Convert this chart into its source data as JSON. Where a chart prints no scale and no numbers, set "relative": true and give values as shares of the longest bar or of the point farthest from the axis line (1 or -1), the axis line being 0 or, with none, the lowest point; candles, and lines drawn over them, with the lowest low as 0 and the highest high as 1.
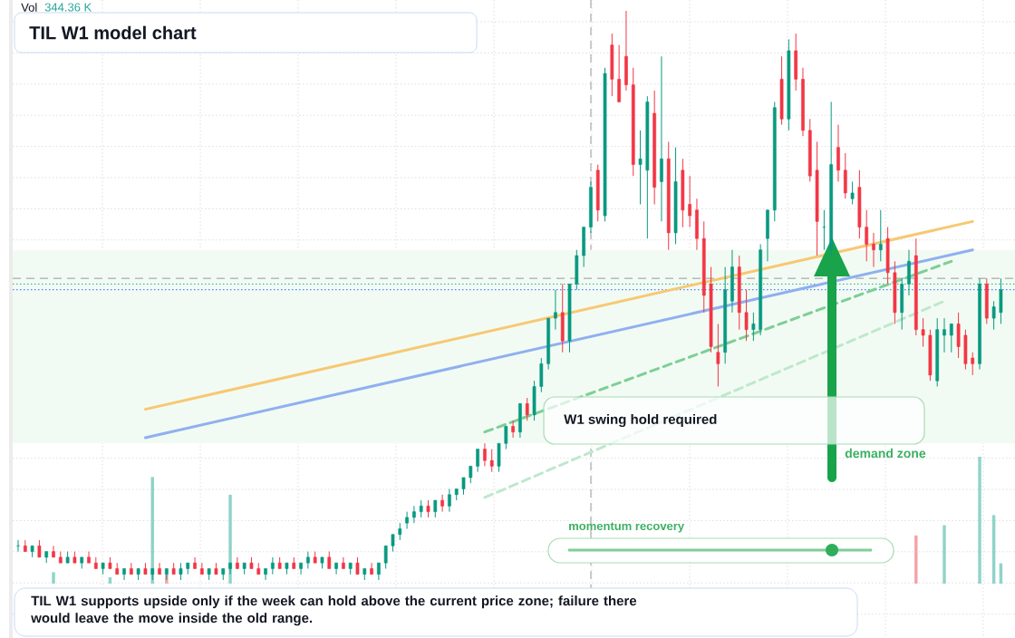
{
  "chart_data": [
    {
      "type": "candlestick",
      "title": "TIL W1 model chart",
      "relative": true,
      "grid": true,
      "categories": [
        null,
        null,
        null,
        null,
        null,
        null,
        null,
        null,
        null,
        null,
        null,
        null,
        null,
        null,
        null,
        null,
        null,
        null,
        null,
        null,
        null,
        null,
        null,
        null,
        null,
        null,
        null,
        null,
        null,
        null,
        null,
        null,
        null,
        null,
        null,
        null,
        null,
        null,
        null,
        null,
        null,
        null,
        null,
        null,
        null,
        null,
        null,
        null,
        null,
        null,
        null,
        null,
        null,
        null,
        null,
        null,
        null,
        null,
        null,
        null,
        null,
        null,
        null,
        null,
        null,
        null,
        null,
        null,
        null,
        null,
        null,
        null,
        null,
        null,
        null,
        null,
        null,
        null,
        null,
        null,
        null,
        null,
        null,
        null,
        null,
        null,
        null,
        null,
        null,
        null,
        null,
        null,
        null,
        null,
        null,
        null,
        null,
        null,
        null,
        null,
        null,
        null,
        null,
        null,
        null,
        null,
        null,
        null,
        null,
        null,
        null,
        null,
        null,
        null,
        null,
        null,
        null,
        null,
        null,
        null,
        null,
        null,
        null,
        null,
        null,
        null,
        null,
        null,
        null,
        null,
        null,
        null,
        null,
        null,
        null,
        null,
        null,
        null,
        null,
        null
      ],
      "ohlc": [
        [
          0.06,
          0.07,
          0.05,
          0.06
        ],
        [
          0.06,
          0.07,
          0.05,
          0.05
        ],
        [
          0.05,
          0.06,
          0.04,
          0.06
        ],
        [
          0.06,
          0.07,
          0.04,
          0.04
        ],
        [
          0.04,
          0.05,
          0.03,
          0.05
        ],
        [
          0.05,
          0.06,
          0.04,
          0.04
        ],
        [
          0.04,
          0.05,
          0.03,
          0.03
        ],
        [
          0.03,
          0.05,
          0.03,
          0.04
        ],
        [
          0.04,
          0.05,
          0.03,
          0.03
        ],
        [
          0.03,
          0.04,
          0.02,
          0.04
        ],
        [
          0.04,
          0.05,
          0.03,
          0.03
        ],
        [
          0.03,
          0.04,
          0.02,
          0.02
        ],
        [
          0.02,
          0.03,
          0.01,
          0.03
        ],
        [
          0.03,
          0.04,
          0.02,
          0.02
        ],
        [
          0.02,
          0.03,
          0.01,
          0.01
        ],
        [
          0.01,
          0.02,
          0,
          0.02
        ],
        [
          0.02,
          0.03,
          0.01,
          0.01
        ],
        [
          0.01,
          0.02,
          0,
          0.02
        ],
        [
          0.02,
          0.03,
          0.01,
          0.01
        ],
        [
          0.01,
          0.02,
          0,
          0.02
        ],
        [
          0.02,
          0.03,
          0.01,
          0.01
        ],
        [
          0.01,
          0.02,
          0,
          0.02
        ],
        [
          0.02,
          0.03,
          0.01,
          0.01
        ],
        [
          0.01,
          0.03,
          0,
          0.02
        ],
        [
          0.02,
          0.03,
          0.01,
          0.03
        ],
        [
          0.03,
          0.04,
          0.02,
          0.02
        ],
        [
          0.02,
          0.03,
          0.01,
          0.01
        ],
        [
          0.01,
          0.02,
          0,
          0.02
        ],
        [
          0.02,
          0.03,
          0.01,
          0.01
        ],
        [
          0.01,
          0.02,
          0,
          0.02
        ],
        [
          0.02,
          0.03,
          0.01,
          0.03
        ],
        [
          0.03,
          0.04,
          0.02,
          0.02
        ],
        [
          0.02,
          0.03,
          0.01,
          0.03
        ],
        [
          0.03,
          0.04,
          0.02,
          0.02
        ],
        [
          0.02,
          0.03,
          0.01,
          0.01
        ],
        [
          0.01,
          0.02,
          0,
          0.02
        ],
        [
          0.02,
          0.04,
          0.01,
          0.03
        ],
        [
          0.03,
          0.04,
          0.02,
          0.02
        ],
        [
          0.02,
          0.03,
          0.01,
          0.03
        ],
        [
          0.03,
          0.04,
          0.02,
          0.02
        ],
        [
          0.02,
          0.03,
          0.01,
          0.03
        ],
        [
          0.03,
          0.05,
          0.02,
          0.04
        ],
        [
          0.04,
          0.05,
          0.03,
          0.03
        ],
        [
          0.03,
          0.04,
          0.02,
          0.04
        ],
        [
          0.04,
          0.05,
          0.02,
          0.02
        ],
        [
          0.02,
          0.03,
          0.01,
          0.03
        ],
        [
          0.03,
          0.04,
          0.02,
          0.02
        ],
        [
          0.02,
          0.03,
          0.01,
          0.03
        ],
        [
          0.03,
          0.04,
          0.01,
          0.01
        ],
        [
          0.01,
          0.02,
          0,
          0.02
        ],
        [
          0.02,
          0.03,
          0.01,
          0.01
        ],
        [
          0.01,
          0.03,
          0,
          0.03
        ],
        [
          0.03,
          0.06,
          0.02,
          0.06
        ],
        [
          0.06,
          0.08,
          0.05,
          0.08
        ],
        [
          0.08,
          0.1,
          0.07,
          0.09
        ],
        [
          0.1,
          0.12,
          0.09,
          0.11
        ],
        [
          0.11,
          0.13,
          0.1,
          0.12
        ],
        [
          0.12,
          0.14,
          0.11,
          0.13
        ],
        [
          0.13,
          0.14,
          0.11,
          0.12
        ],
        [
          0.12,
          0.14,
          0.11,
          0.14
        ],
        [
          0.14,
          0.15,
          0.12,
          0.13
        ],
        [
          0.13,
          0.16,
          0.12,
          0.15
        ],
        [
          0.15,
          0.16,
          0.14,
          0.16
        ],
        [
          0.16,
          0.18,
          0.15,
          0.18
        ],
        [
          0.18,
          0.2,
          0.17,
          0.2
        ],
        [
          0.2,
          0.23,
          0.19,
          0.23
        ],
        [
          0.23,
          0.24,
          0.2,
          0.21
        ],
        [
          0.21,
          0.23,
          0.19,
          0.2
        ],
        [
          0.2,
          0.24,
          0.19,
          0.24
        ],
        [
          0.24,
          0.27,
          0.23,
          0.27
        ],
        [
          0.27,
          0.28,
          0.25,
          0.26
        ],
        [
          0.26,
          0.31,
          0.25,
          0.31
        ],
        [
          0.31,
          0.32,
          0.28,
          0.29
        ],
        [
          0.29,
          0.35,
          0.28,
          0.34
        ],
        [
          0.34,
          0.39,
          0.33,
          0.38
        ],
        [
          0.38,
          0.46,
          0.37,
          0.46
        ],
        [
          0.46,
          0.51,
          0.44,
          0.47
        ],
        [
          0.47,
          0.52,
          0.4,
          0.42
        ],
        [
          0.42,
          0.52,
          0.4,
          0.52
        ],
        [
          0.52,
          0.58,
          0.51,
          0.57
        ],
        [
          0.57,
          0.62,
          0.55,
          0.62
        ],
        [
          0.62,
          0.7,
          0.61,
          0.69
        ],
        [
          0.72,
          0.73,
          0.63,
          0.65
        ],
        [
          0.64,
          0.9,
          0.63,
          0.89
        ],
        [
          0.94,
          0.96,
          0.85,
          0.88
        ],
        [
          0.88,
          0.94,
          0.84,
          0.84
        ],
        [
          0.92,
          1,
          0.86,
          0.87
        ],
        [
          0.87,
          0.9,
          0.71,
          0.73
        ],
        [
          0.73,
          0.79,
          0.66,
          0.74
        ],
        [
          0.72,
          0.85,
          0.6,
          0.84
        ],
        [
          0.82,
          0.86,
          0.66,
          0.69
        ],
        [
          0.7,
          0.92,
          0.63,
          0.74
        ],
        [
          0.74,
          0.77,
          0.58,
          0.61
        ],
        [
          0.61,
          0.76,
          0.59,
          0.7
        ],
        [
          0.72,
          0.74,
          0.62,
          0.65
        ],
        [
          0.66,
          0.71,
          0.62,
          0.64
        ],
        [
          0.65,
          0.67,
          0.58,
          0.6
        ],
        [
          0.6,
          0.63,
          0.47,
          0.5
        ],
        [
          0.52,
          0.55,
          0.4,
          0.41
        ],
        [
          0.4,
          0.45,
          0.34,
          0.38
        ],
        [
          0.4,
          0.55,
          0.38,
          0.51
        ],
        [
          0.49,
          0.58,
          0.47,
          0.55
        ],
        [
          0.55,
          0.57,
          0.44,
          0.47
        ],
        [
          0.47,
          0.51,
          0.42,
          0.44
        ],
        [
          0.44,
          0.47,
          0.42,
          0.45
        ],
        [
          0.44,
          0.59,
          0.43,
          0.58
        ],
        [
          0.6,
          0.65,
          0.56,
          0.65
        ],
        [
          0.65,
          0.84,
          0.63,
          0.83
        ],
        [
          0.88,
          0.92,
          0.8,
          0.81
        ],
        [
          0.81,
          0.95,
          0.79,
          0.93
        ],
        [
          0.93,
          0.96,
          0.86,
          0.88
        ],
        [
          0.88,
          0.9,
          0.78,
          0.79
        ],
        [
          0.79,
          0.81,
          0.7,
          0.71
        ],
        [
          0.72,
          0.77,
          0.57,
          0.63
        ],
        [
          0.62,
          0.65,
          0.58,
          0.62
        ],
        [
          0.58,
          0.84,
          0.57,
          0.73
        ],
        [
          0.76,
          0.8,
          0.7,
          0.72
        ],
        [
          0.72,
          0.75,
          0.67,
          0.68
        ],
        [
          0.67,
          0.7,
          0.66,
          0.68
        ],
        [
          0.69,
          0.72,
          0.6,
          0.62
        ],
        [
          0.62,
          0.65,
          0.56,
          0.59
        ],
        [
          0.59,
          0.61,
          0.55,
          0.58
        ],
        [
          0.58,
          0.65,
          0.56,
          0.59
        ],
        [
          0.6,
          0.62,
          0.52,
          0.54
        ],
        [
          0.54,
          0.56,
          0.45,
          0.47
        ],
        [
          0.47,
          0.53,
          0.44,
          0.52
        ],
        [
          0.52,
          0.58,
          0.5,
          0.56
        ],
        [
          0.57,
          0.6,
          0.43,
          0.44
        ],
        [
          0.44,
          0.46,
          0.41,
          0.43
        ],
        [
          0.43,
          0.44,
          0.35,
          0.36
        ],
        [
          0.35,
          0.46,
          0.34,
          0.44
        ],
        [
          0.43,
          0.46,
          0.4,
          0.44
        ],
        [
          0.43,
          0.45,
          0.4,
          0.45
        ],
        [
          0.45,
          0.47,
          0.39,
          0.41
        ],
        [
          0.43,
          0.44,
          0.37,
          0.38
        ],
        [
          0.39,
          0.4,
          0.36,
          0.38
        ],
        [
          0.38,
          0.53,
          0.37,
          0.52
        ],
        [
          0.52,
          0.53,
          0.45,
          0.46
        ],
        [
          0.46,
          0.49,
          0.44,
          0.48
        ],
        [
          0.47,
          0.53,
          0.45,
          0.51
        ]
      ],
      "series": [
        {
          "type": "line",
          "color": "#f7c873",
          "values": [
            null,
            null,
            null,
            null,
            null,
            null,
            null,
            null,
            null,
            null,
            null,
            null,
            null,
            null,
            null,
            null,
            null,
            null,
            0.3,
            null,
            null,
            null,
            null,
            null,
            null,
            null,
            null,
            null,
            null,
            null,
            null,
            null,
            null,
            null,
            null,
            null,
            null,
            null,
            null,
            null,
            null,
            null,
            null,
            null,
            null,
            null,
            null,
            null,
            null,
            null,
            null,
            null,
            null,
            null,
            null,
            null,
            null,
            null,
            null,
            null,
            null,
            null,
            null,
            null,
            null,
            null,
            null,
            null,
            null,
            null,
            null,
            null,
            null,
            null,
            null,
            null,
            null,
            null,
            null,
            null,
            null,
            null,
            null,
            null,
            null,
            null,
            null,
            null,
            null,
            null,
            null,
            null,
            null,
            null,
            null,
            null,
            null,
            null,
            null,
            null,
            null,
            null,
            null,
            null,
            null,
            null,
            null,
            null,
            null,
            null,
            null,
            null,
            null,
            null,
            null,
            null,
            null,
            null,
            null,
            null,
            null,
            null,
            null,
            null,
            null,
            null,
            null,
            null,
            null,
            null,
            null,
            null,
            null,
            null,
            null,
            0.63,
            null,
            null,
            null,
            null
          ]
        },
        {
          "type": "line",
          "color": "#8fb0f0",
          "values": [
            null,
            null,
            null,
            null,
            null,
            null,
            null,
            null,
            null,
            null,
            null,
            null,
            null,
            null,
            null,
            null,
            null,
            null,
            0.25,
            null,
            null,
            null,
            null,
            null,
            null,
            null,
            null,
            null,
            null,
            null,
            null,
            null,
            null,
            null,
            null,
            null,
            null,
            null,
            null,
            null,
            null,
            null,
            null,
            null,
            null,
            null,
            null,
            null,
            null,
            null,
            null,
            null,
            null,
            null,
            null,
            null,
            null,
            null,
            null,
            null,
            null,
            null,
            null,
            null,
            null,
            null,
            null,
            null,
            null,
            null,
            null,
            null,
            null,
            null,
            null,
            null,
            null,
            null,
            null,
            null,
            null,
            null,
            null,
            null,
            null,
            null,
            null,
            null,
            null,
            null,
            null,
            null,
            null,
            null,
            null,
            null,
            null,
            null,
            null,
            null,
            null,
            null,
            null,
            null,
            null,
            null,
            null,
            null,
            null,
            null,
            null,
            null,
            null,
            null,
            null,
            null,
            null,
            null,
            null,
            null,
            null,
            null,
            null,
            null,
            null,
            null,
            null,
            null,
            null,
            null,
            null,
            null,
            null,
            null,
            null,
            0.58,
            null,
            null,
            null,
            null
          ]
        },
        {
          "type": "line",
          "color": "#7dcf96",
          "line_style": "dashed",
          "values": [
            null,
            null,
            null,
            null,
            null,
            null,
            null,
            null,
            null,
            null,
            null,
            null,
            null,
            null,
            null,
            null,
            null,
            null,
            null,
            null,
            null,
            null,
            null,
            null,
            null,
            null,
            null,
            null,
            null,
            null,
            null,
            null,
            null,
            null,
            null,
            null,
            null,
            null,
            null,
            null,
            null,
            null,
            null,
            null,
            null,
            null,
            null,
            null,
            null,
            null,
            null,
            null,
            null,
            null,
            null,
            null,
            null,
            null,
            null,
            null,
            null,
            null,
            null,
            null,
            null,
            null,
            0.26,
            null,
            null,
            null,
            null,
            null,
            null,
            null,
            null,
            null,
            null,
            null,
            null,
            null,
            null,
            null,
            null,
            null,
            null,
            null,
            null,
            null,
            null,
            null,
            null,
            null,
            null,
            null,
            null,
            null,
            null,
            null,
            null,
            null,
            null,
            null,
            null,
            null,
            null,
            null,
            null,
            null,
            null,
            null,
            null,
            null,
            null,
            null,
            null,
            null,
            null,
            null,
            null,
            null,
            null,
            null,
            null,
            null,
            null,
            null,
            null,
            null,
            null,
            null,
            null,
            null,
            0.56,
            null,
            null,
            null,
            null,
            null,
            null,
            null
          ]
        },
        {
          "type": "line",
          "color": "#bfe8cc",
          "line_style": "dashed",
          "values": [
            null,
            null,
            null,
            null,
            null,
            null,
            null,
            null,
            null,
            null,
            null,
            null,
            null,
            null,
            null,
            null,
            null,
            null,
            null,
            null,
            null,
            null,
            null,
            null,
            null,
            null,
            null,
            null,
            null,
            null,
            null,
            null,
            null,
            null,
            null,
            null,
            null,
            null,
            null,
            null,
            null,
            null,
            null,
            null,
            null,
            null,
            null,
            null,
            null,
            null,
            null,
            null,
            null,
            null,
            null,
            null,
            null,
            null,
            null,
            null,
            null,
            null,
            null,
            null,
            null,
            null,
            0.145,
            null,
            null,
            null,
            null,
            null,
            null,
            null,
            null,
            null,
            null,
            null,
            null,
            null,
            null,
            null,
            null,
            null,
            null,
            null,
            null,
            null,
            null,
            null,
            null,
            null,
            null,
            null,
            null,
            null,
            null,
            null,
            null,
            null,
            null,
            null,
            null,
            null,
            null,
            null,
            null,
            null,
            null,
            null,
            null,
            null,
            null,
            null,
            null,
            null,
            null,
            null,
            null,
            null,
            null,
            null,
            null,
            null,
            null,
            null,
            null,
            null,
            null,
            null,
            null,
            0.49,
            null,
            null,
            null,
            null,
            null,
            null,
            null,
            null
          ]
        }
      ],
      "ref_lines": [
        {
          "axis": "y",
          "value": 0.53,
          "color": "#999999",
          "line_style": "dashed"
        },
        {
          "axis": "y",
          "value": 0.52,
          "color": "#26a69a",
          "line_style": "dotted"
        },
        {
          "axis": "y",
          "value": 0.51,
          "color": "#2962ff",
          "line_style": "dotted"
        }
      ],
      "bands": [
        {
          "axis": "y",
          "from": 0.24,
          "to": 0.58,
          "label": "demand zone",
          "color": "#f2fbf3"
        }
      ],
      "annotations": [
        "W1 swing hold required",
        "momentum recovery",
        "TIL W1 supports upside only if the week can hold above the current price zone; failure there would leave the move inside the old range."
      ]
    },
    {
      "type": "bar",
      "relative": true,
      "annotations": [
        "Vol",
        "344.36 K"
      ],
      "categories": [
        null,
        null,
        null,
        null,
        null,
        null,
        null,
        null,
        null,
        null,
        null,
        null,
        null,
        null,
        null,
        null,
        null,
        null,
        null,
        null,
        null,
        null,
        null,
        null,
        null,
        null,
        null,
        null,
        null,
        null,
        null,
        null,
        null,
        null,
        null,
        null,
        null,
        null,
        null,
        null,
        null,
        null,
        null,
        null,
        null,
        null,
        null,
        null,
        null,
        null,
        null,
        null,
        null,
        null,
        null,
        null,
        null,
        null,
        null,
        null,
        null,
        null,
        null,
        null,
        null,
        null,
        null,
        null,
        null,
        null,
        null,
        null,
        null,
        null,
        null,
        null,
        null,
        null,
        null,
        null,
        null,
        null,
        null,
        null,
        null,
        null,
        null,
        null,
        null,
        null,
        null,
        null,
        null,
        null,
        null,
        null,
        null,
        null,
        null,
        null,
        null,
        null,
        null,
        null,
        null,
        null,
        null,
        null,
        null,
        null,
        null,
        null,
        null,
        null,
        null,
        null,
        null,
        null,
        null,
        null,
        null,
        null,
        null,
        null,
        null,
        null,
        null,
        null,
        null,
        null,
        null,
        null,
        null,
        null,
        null,
        null,
        null,
        null,
        null,
        null
      ],
      "values": [
        null,
        null,
        null,
        null,
        null,
        0.09,
        null,
        null,
        null,
        null,
        null,
        null,
        null,
        0.05,
        null,
        null,
        null,
        null,
        null,
        0.84,
        null,
        0.07,
        null,
        null,
        null,
        null,
        null,
        null,
        null,
        null,
        0.7,
        null,
        null,
        null,
        null,
        null,
        null,
        null,
        null,
        null,
        null,
        null,
        null,
        null,
        null,
        null,
        null,
        null,
        null,
        null,
        null,
        null,
        null,
        null,
        null,
        null,
        null,
        null,
        null,
        null,
        null,
        null,
        null,
        null,
        null,
        null,
        null,
        null,
        null,
        null,
        null,
        null,
        null,
        null,
        null,
        null,
        null,
        null,
        null,
        null,
        null,
        null,
        null,
        null,
        null,
        null,
        null,
        null,
        null,
        null,
        null,
        null,
        null,
        null,
        null,
        null,
        null,
        null,
        null,
        null,
        null,
        null,
        null,
        null,
        null,
        null,
        null,
        null,
        null,
        null,
        null,
        null,
        null,
        null,
        null,
        null,
        null,
        null,
        null,
        null,
        null,
        null,
        null,
        null,
        null,
        null,
        null,
        0.38,
        null,
        null,
        null,
        0.46,
        null,
        null,
        null,
        null,
        1,
        null,
        0.54,
        0.16
      ],
      "colors": [
        null,
        null,
        null,
        null,
        null,
        "#8fd3c9",
        null,
        null,
        null,
        null,
        null,
        null,
        null,
        "#8fd3c9",
        null,
        null,
        null,
        null,
        null,
        "#8fd3c9",
        null,
        "#f4a3a8",
        null,
        null,
        null,
        null,
        null,
        null,
        null,
        null,
        "#8fd3c9",
        null,
        null,
        null,
        null,
        null,
        null,
        null,
        null,
        null,
        null,
        null,
        null,
        null,
        null,
        null,
        null,
        null,
        null,
        null,
        null,
        null,
        null,
        null,
        null,
        null,
        null,
        null,
        null,
        null,
        null,
        null,
        null,
        null,
        null,
        null,
        null,
        null,
        null,
        null,
        null,
        null,
        null,
        null,
        null,
        null,
        null,
        null,
        null,
        null,
        null,
        null,
        null,
        null,
        null,
        null,
        null,
        null,
        null,
        null,
        null,
        null,
        null,
        null,
        null,
        null,
        null,
        null,
        null,
        null,
        null,
        null,
        null,
        null,
        null,
        null,
        null,
        null,
        null,
        null,
        null,
        null,
        null,
        null,
        null,
        null,
        null,
        null,
        null,
        null,
        null,
        null,
        null,
        null,
        null,
        null,
        null,
        "#f4a3a8",
        null,
        null,
        null,
        "#8fd3c9",
        null,
        null,
        null,
        null,
        "#8fd3c9",
        null,
        "#8fd3c9",
        "#8fd3c9"
      ]
    }
  ]
}
